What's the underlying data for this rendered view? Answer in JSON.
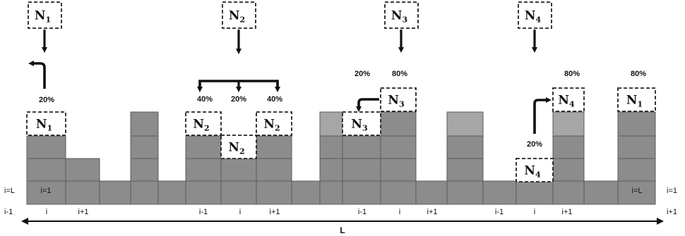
{
  "nodes": [
    {
      "letter": "N",
      "sub": "1"
    },
    {
      "letter": "N",
      "sub": "2"
    },
    {
      "letter": "N",
      "sub": "3"
    },
    {
      "letter": "N",
      "sub": "4"
    }
  ],
  "percentages": {
    "n1_up": "20%",
    "n2_left": "40%",
    "n2_mid": "20%",
    "n2_right": "40%",
    "n3_left": "20%",
    "n3_stay": "80%",
    "n4_up": "20%",
    "n4_stay": "80%",
    "n1_wrap": "80%"
  },
  "side_labels": {
    "left_upper": "i=L",
    "left_lower": "i-1",
    "right_upper": "i=1",
    "right_lower": "i+1",
    "first_cell": "i=1",
    "last_cell": "i=L"
  },
  "bottom_indices": [
    "i",
    "i+1",
    "i-1",
    "i",
    "i+1",
    "i-1",
    "i",
    "i+1",
    "i-1",
    "i",
    "i+1"
  ],
  "length_label": "L",
  "colors": {
    "block": "#8c8c8c",
    "block_light": "#a6a6a6",
    "block_border": "#5a5a5a",
    "dashed": "#222222",
    "arrow": "#111111"
  }
}
